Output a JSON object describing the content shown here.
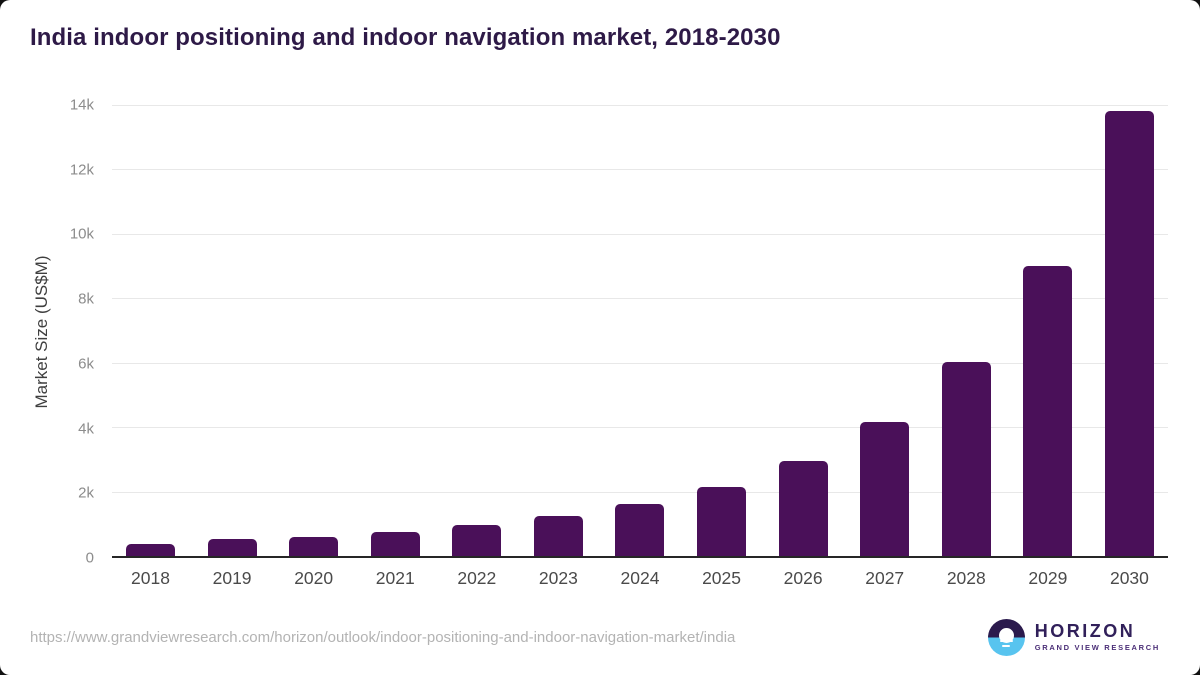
{
  "title": "India indoor positioning and indoor navigation market, 2018-2030",
  "chart_data": {
    "type": "bar",
    "title": "India indoor positioning and indoor navigation market, 2018-2030",
    "xlabel": "",
    "ylabel": "Market Size (US$M)",
    "categories": [
      "2018",
      "2019",
      "2020",
      "2021",
      "2022",
      "2023",
      "2024",
      "2025",
      "2026",
      "2027",
      "2028",
      "2029",
      "2030"
    ],
    "values": [
      380,
      520,
      600,
      750,
      970,
      1250,
      1620,
      2150,
      2960,
      4150,
      6020,
      9000,
      13800
    ],
    "ylim": [
      0,
      14000
    ],
    "yticks": [
      {
        "label": "0",
        "value": 0
      },
      {
        "label": "2k",
        "value": 2000
      },
      {
        "label": "4k",
        "value": 4000
      },
      {
        "label": "6k",
        "value": 6000
      },
      {
        "label": "8k",
        "value": 8000
      },
      {
        "label": "10k",
        "value": 10000
      },
      {
        "label": "12k",
        "value": 12000
      },
      {
        "label": "14k",
        "value": 14000
      }
    ],
    "grid": "horizontal",
    "legend": "none",
    "bar_color": "#4a1059"
  },
  "colors": {
    "title_text": "#2e1a47",
    "bar": "#4a1059",
    "gridline": "#e8e8e8",
    "axis_line": "#262626",
    "y_tick_text": "#8c8c8c",
    "x_tick_text": "#4a4a4a",
    "url_text": "#b3b3b3",
    "logo_dark": "#2b1a4d",
    "logo_blue": "#58c4ef"
  },
  "footer": {
    "url": "https://www.grandviewresearch.com/horizon/outlook/indoor-positioning-and-indoor-navigation-market/india",
    "logo": {
      "brand": "HORIZON",
      "subtitle": "GRAND VIEW RESEARCH"
    }
  }
}
